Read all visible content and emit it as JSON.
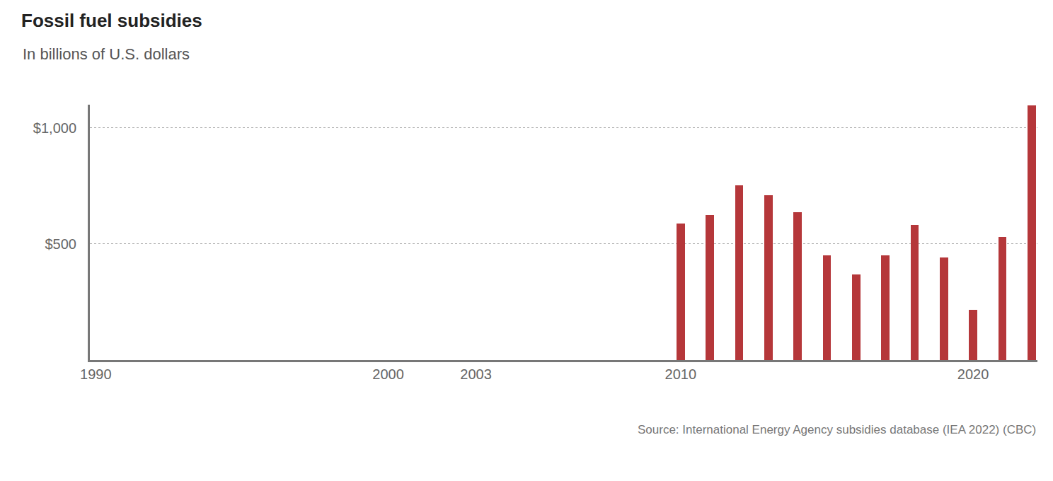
{
  "chart_data": {
    "type": "bar",
    "title": "Fossil fuel subsidies",
    "subtitle": "In billions of U.S. dollars",
    "source": "Source: International Energy Agency subsidies database (IEA 2022) (CBC)",
    "x": [
      2010,
      2011,
      2012,
      2013,
      2014,
      2015,
      2016,
      2017,
      2018,
      2019,
      2020,
      2021,
      2022
    ],
    "values": [
      588,
      625,
      753,
      710,
      637,
      451,
      369,
      451,
      582,
      442,
      216,
      530,
      1097
    ],
    "color": "#b5373a",
    "xlim": [
      1989.8,
      2022.2
    ],
    "xticks": [
      1990,
      2000,
      2003,
      2010,
      2020
    ],
    "ylim": [
      0,
      1100
    ],
    "yticks": [
      {
        "value": 500,
        "label": "$500"
      },
      {
        "value": 1000,
        "label": "$1,000"
      }
    ],
    "grid": true
  }
}
